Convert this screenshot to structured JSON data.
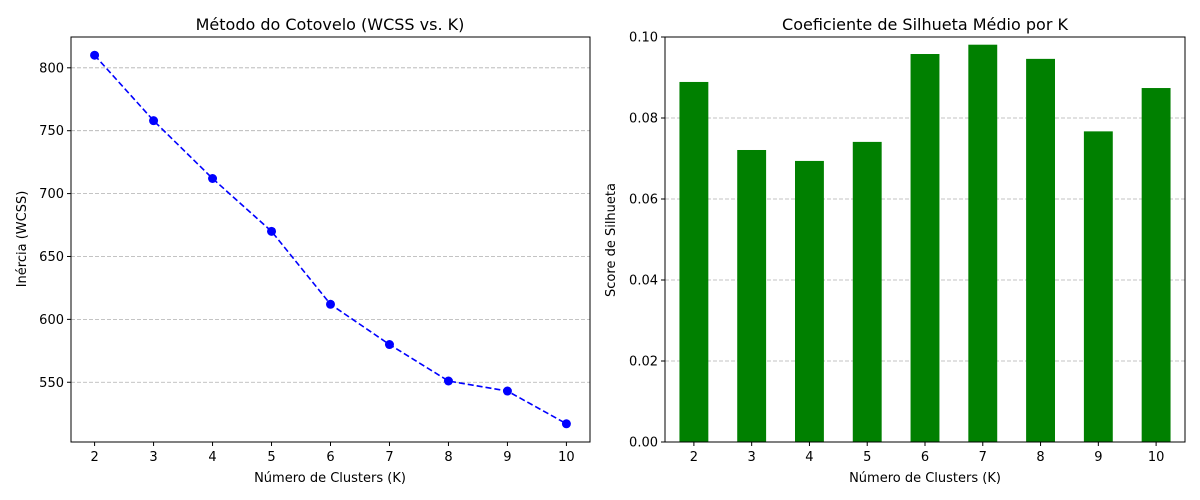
{
  "chart_data": [
    {
      "type": "line",
      "title": "Método do Cotovelo (WCSS vs. K)",
      "xlabel": "Número de Clusters (K)",
      "ylabel": "Inércia (WCSS)",
      "x": [
        2,
        3,
        4,
        5,
        6,
        7,
        8,
        9,
        10
      ],
      "series": [
        {
          "values": [
            810,
            758,
            712,
            670,
            612,
            580,
            551,
            543,
            517
          ],
          "color": "#0000ff",
          "marker": "circle",
          "line_style": "dashed"
        }
      ],
      "xticks": [
        2,
        3,
        4,
        5,
        6,
        7,
        8,
        9,
        10
      ],
      "yticks": [
        550,
        600,
        650,
        700,
        750,
        800
      ],
      "xlim": [
        1.6,
        10.4
      ],
      "ylim": [
        502.5,
        824.5
      ],
      "grid": "y-dashed"
    },
    {
      "type": "bar",
      "title": "Coeficiente de Silhueta Médio por K",
      "xlabel": "Número de Clusters (K)",
      "ylabel": "Score de Silhueta",
      "categories": [
        "2",
        "3",
        "4",
        "5",
        "6",
        "7",
        "8",
        "9",
        "10"
      ],
      "values": [
        0.0889,
        0.0721,
        0.0694,
        0.0741,
        0.0958,
        0.0981,
        0.0946,
        0.0767,
        0.0874
      ],
      "color": "#008000",
      "yticks": [
        "0.00",
        "0.02",
        "0.04",
        "0.06",
        "0.08",
        "0.10"
      ],
      "ylim": [
        0,
        0.1
      ],
      "grid": "y-dashed"
    }
  ]
}
